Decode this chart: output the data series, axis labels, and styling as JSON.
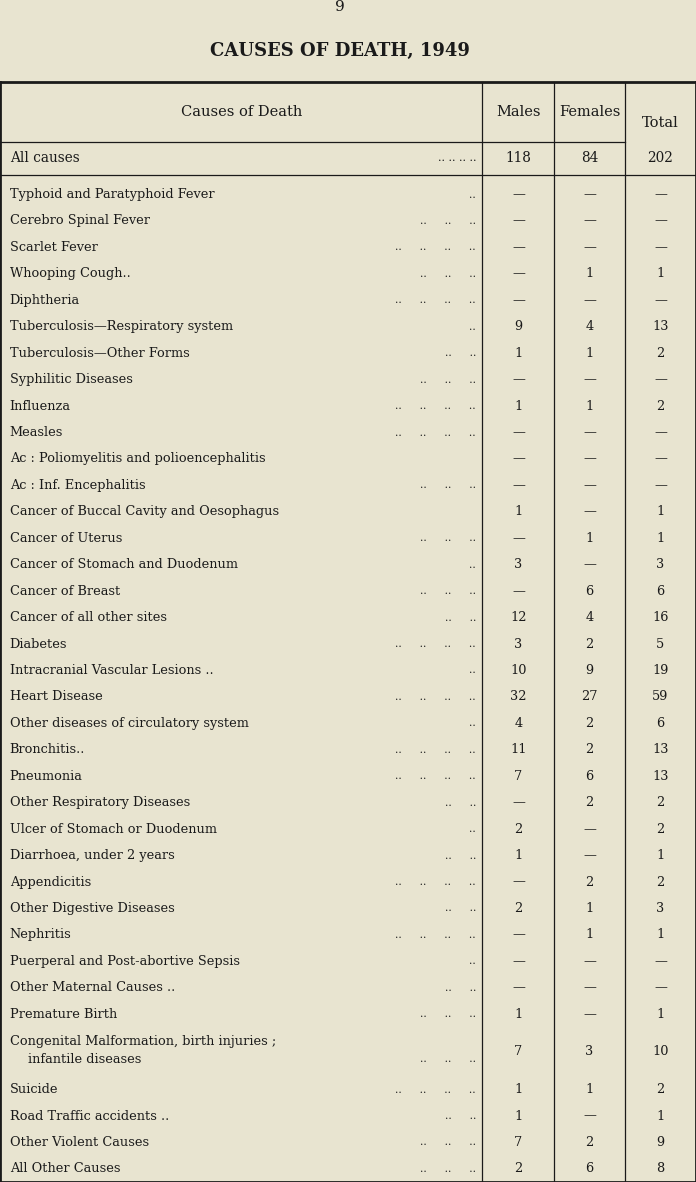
{
  "page_number": "9",
  "title": "CAUSES OF DEATH, 1949",
  "background_color": "#e8e4d0",
  "all_causes_males": "118",
  "all_causes_females": "84",
  "all_causes_total": "202",
  "rows": [
    {
      "cause": "Typhoid and Paratyphoid Fever",
      "dots": "..",
      "males": "—",
      "females": "—",
      "total": "—",
      "two_line": false
    },
    {
      "cause": "Cerebro Spinal Fever",
      "dots": "..   ..   ..",
      "males": "—",
      "females": "—",
      "total": "—",
      "two_line": false
    },
    {
      "cause": "Scarlet Fever",
      "dots": "..   ..   ..   ..",
      "males": "—",
      "females": "—",
      "total": "—",
      "two_line": false
    },
    {
      "cause": "Whooping Cough..",
      "dots": "..   ..   ..",
      "males": "—",
      "females": "1",
      "total": "1",
      "two_line": false
    },
    {
      "cause": "Diphtheria",
      "dots": "..   ..   ..   ..",
      "males": "—",
      "females": "—",
      "total": "—",
      "two_line": false
    },
    {
      "cause": "Tuberculosis—Respiratory system",
      "dots": "..",
      "males": "9",
      "females": "4",
      "total": "13",
      "two_line": false
    },
    {
      "cause": "Tuberculosis—Other Forms",
      "dots": "..   ..",
      "males": "1",
      "females": "1",
      "total": "2",
      "two_line": false
    },
    {
      "cause": "Syphilitic Diseases",
      "dots": "..   ..   ..",
      "males": "—",
      "females": "—",
      "total": "—",
      "two_line": false
    },
    {
      "cause": "Influenza",
      "dots": "..   ..   ..   ..",
      "males": "1",
      "females": "1",
      "total": "2",
      "two_line": false
    },
    {
      "cause": "Measles",
      "dots": "..   ..   ..   ..",
      "males": "—",
      "females": "—",
      "total": "—",
      "two_line": false
    },
    {
      "cause": "Ac : Poliomyelitis and polioencephalitis",
      "dots": "",
      "males": "—",
      "females": "—",
      "total": "—",
      "two_line": false
    },
    {
      "cause": "Ac : Inf. Encephalitis",
      "dots": "..   ..   ..",
      "males": "—",
      "females": "—",
      "total": "—",
      "two_line": false
    },
    {
      "cause": "Cancer of Buccal Cavity and Oesophagus",
      "dots": "",
      "males": "1",
      "females": "—",
      "total": "1",
      "two_line": false
    },
    {
      "cause": "Cancer of Uterus",
      "dots": "..   ..   ..",
      "males": "—",
      "females": "1",
      "total": "1",
      "two_line": false
    },
    {
      "cause": "Cancer of Stomach and Duodenum",
      "dots": "..",
      "males": "3",
      "females": "—",
      "total": "3",
      "two_line": false
    },
    {
      "cause": "Cancer of Breast",
      "dots": "..   ..   ..",
      "males": "—",
      "females": "6",
      "total": "6",
      "two_line": false
    },
    {
      "cause": "Cancer of all other sites",
      "dots": "..   ..",
      "males": "12",
      "females": "4",
      "total": "16",
      "two_line": false
    },
    {
      "cause": "Diabetes",
      "dots": "..   ..   ..   ..",
      "males": "3",
      "females": "2",
      "total": "5",
      "two_line": false
    },
    {
      "cause": "Intracranial Vascular Lesions ..",
      "dots": "..",
      "males": "10",
      "females": "9",
      "total": "19",
      "two_line": false
    },
    {
      "cause": "Heart Disease",
      "dots": "..   ..   ..   ..",
      "males": "32",
      "females": "27",
      "total": "59",
      "two_line": false
    },
    {
      "cause": "Other diseases of circulatory system",
      "dots": "..",
      "males": "4",
      "females": "2",
      "total": "6",
      "two_line": false
    },
    {
      "cause": "Bronchitis..",
      "dots": "..   ..   ..   ..",
      "males": "11",
      "females": "2",
      "total": "13",
      "two_line": false
    },
    {
      "cause": "Pneumonia",
      "dots": "..   ..   ..   ..",
      "males": "7",
      "females": "6",
      "total": "13",
      "two_line": false
    },
    {
      "cause": "Other Respiratory Diseases",
      "dots": "..   ..",
      "males": "—",
      "females": "2",
      "total": "2",
      "two_line": false
    },
    {
      "cause": "Ulcer of Stomach or Duodenum",
      "dots": "..",
      "males": "2",
      "females": "—",
      "total": "2",
      "two_line": false
    },
    {
      "cause": "Diarrhoea, under 2 years",
      "dots": "..   ..",
      "males": "1",
      "females": "—",
      "total": "1",
      "two_line": false
    },
    {
      "cause": "Appendicitis",
      "dots": "..   ..   ..   ..",
      "males": "—",
      "females": "2",
      "total": "2",
      "two_line": false
    },
    {
      "cause": "Other Digestive Diseases",
      "dots": "..   ..",
      "males": "2",
      "females": "1",
      "total": "3",
      "two_line": false
    },
    {
      "cause": "Nephritis",
      "dots": "..   ..   ..   ..",
      "males": "—",
      "females": "1",
      "total": "1",
      "two_line": false
    },
    {
      "cause": "Puerperal and Post-abortive Sepsis",
      "dots": "..",
      "males": "—",
      "females": "—",
      "total": "—",
      "two_line": false
    },
    {
      "cause": "Other Maternal Causes ..",
      "dots": "..   ..",
      "males": "—",
      "females": "—",
      "total": "—",
      "two_line": false
    },
    {
      "cause": "Premature Birth",
      "dots": "..   ..   ..",
      "males": "1",
      "females": "—",
      "total": "1",
      "two_line": false
    },
    {
      "cause": "Congenital Malformation, birth injuries ;",
      "cause_line2": "    infantile diseases",
      "dots": "",
      "dots_line2": "..   ..   ..",
      "males": "7",
      "females": "3",
      "total": "10",
      "two_line": true
    },
    {
      "cause": "Suicide",
      "dots": "..   ..   ..   ..",
      "males": "1",
      "females": "1",
      "total": "2",
      "two_line": false
    },
    {
      "cause": "Road Traffic accidents ..",
      "dots": "..   ..",
      "males": "1",
      "females": "—",
      "total": "1",
      "two_line": false
    },
    {
      "cause": "Other Violent Causes",
      "dots": "..   ..   ..",
      "males": "7",
      "females": "2",
      "total": "9",
      "two_line": false
    },
    {
      "cause": "All Other Causes",
      "dots": "..   ..   ..",
      "males": "2",
      "females": "6",
      "total": "8",
      "two_line": false
    }
  ],
  "text_color": "#1a1a1a",
  "line_color": "#1a1a1a",
  "font_size_title": 13,
  "font_size_header": 10.5,
  "font_size_body": 9.8,
  "font_size_page": 11
}
